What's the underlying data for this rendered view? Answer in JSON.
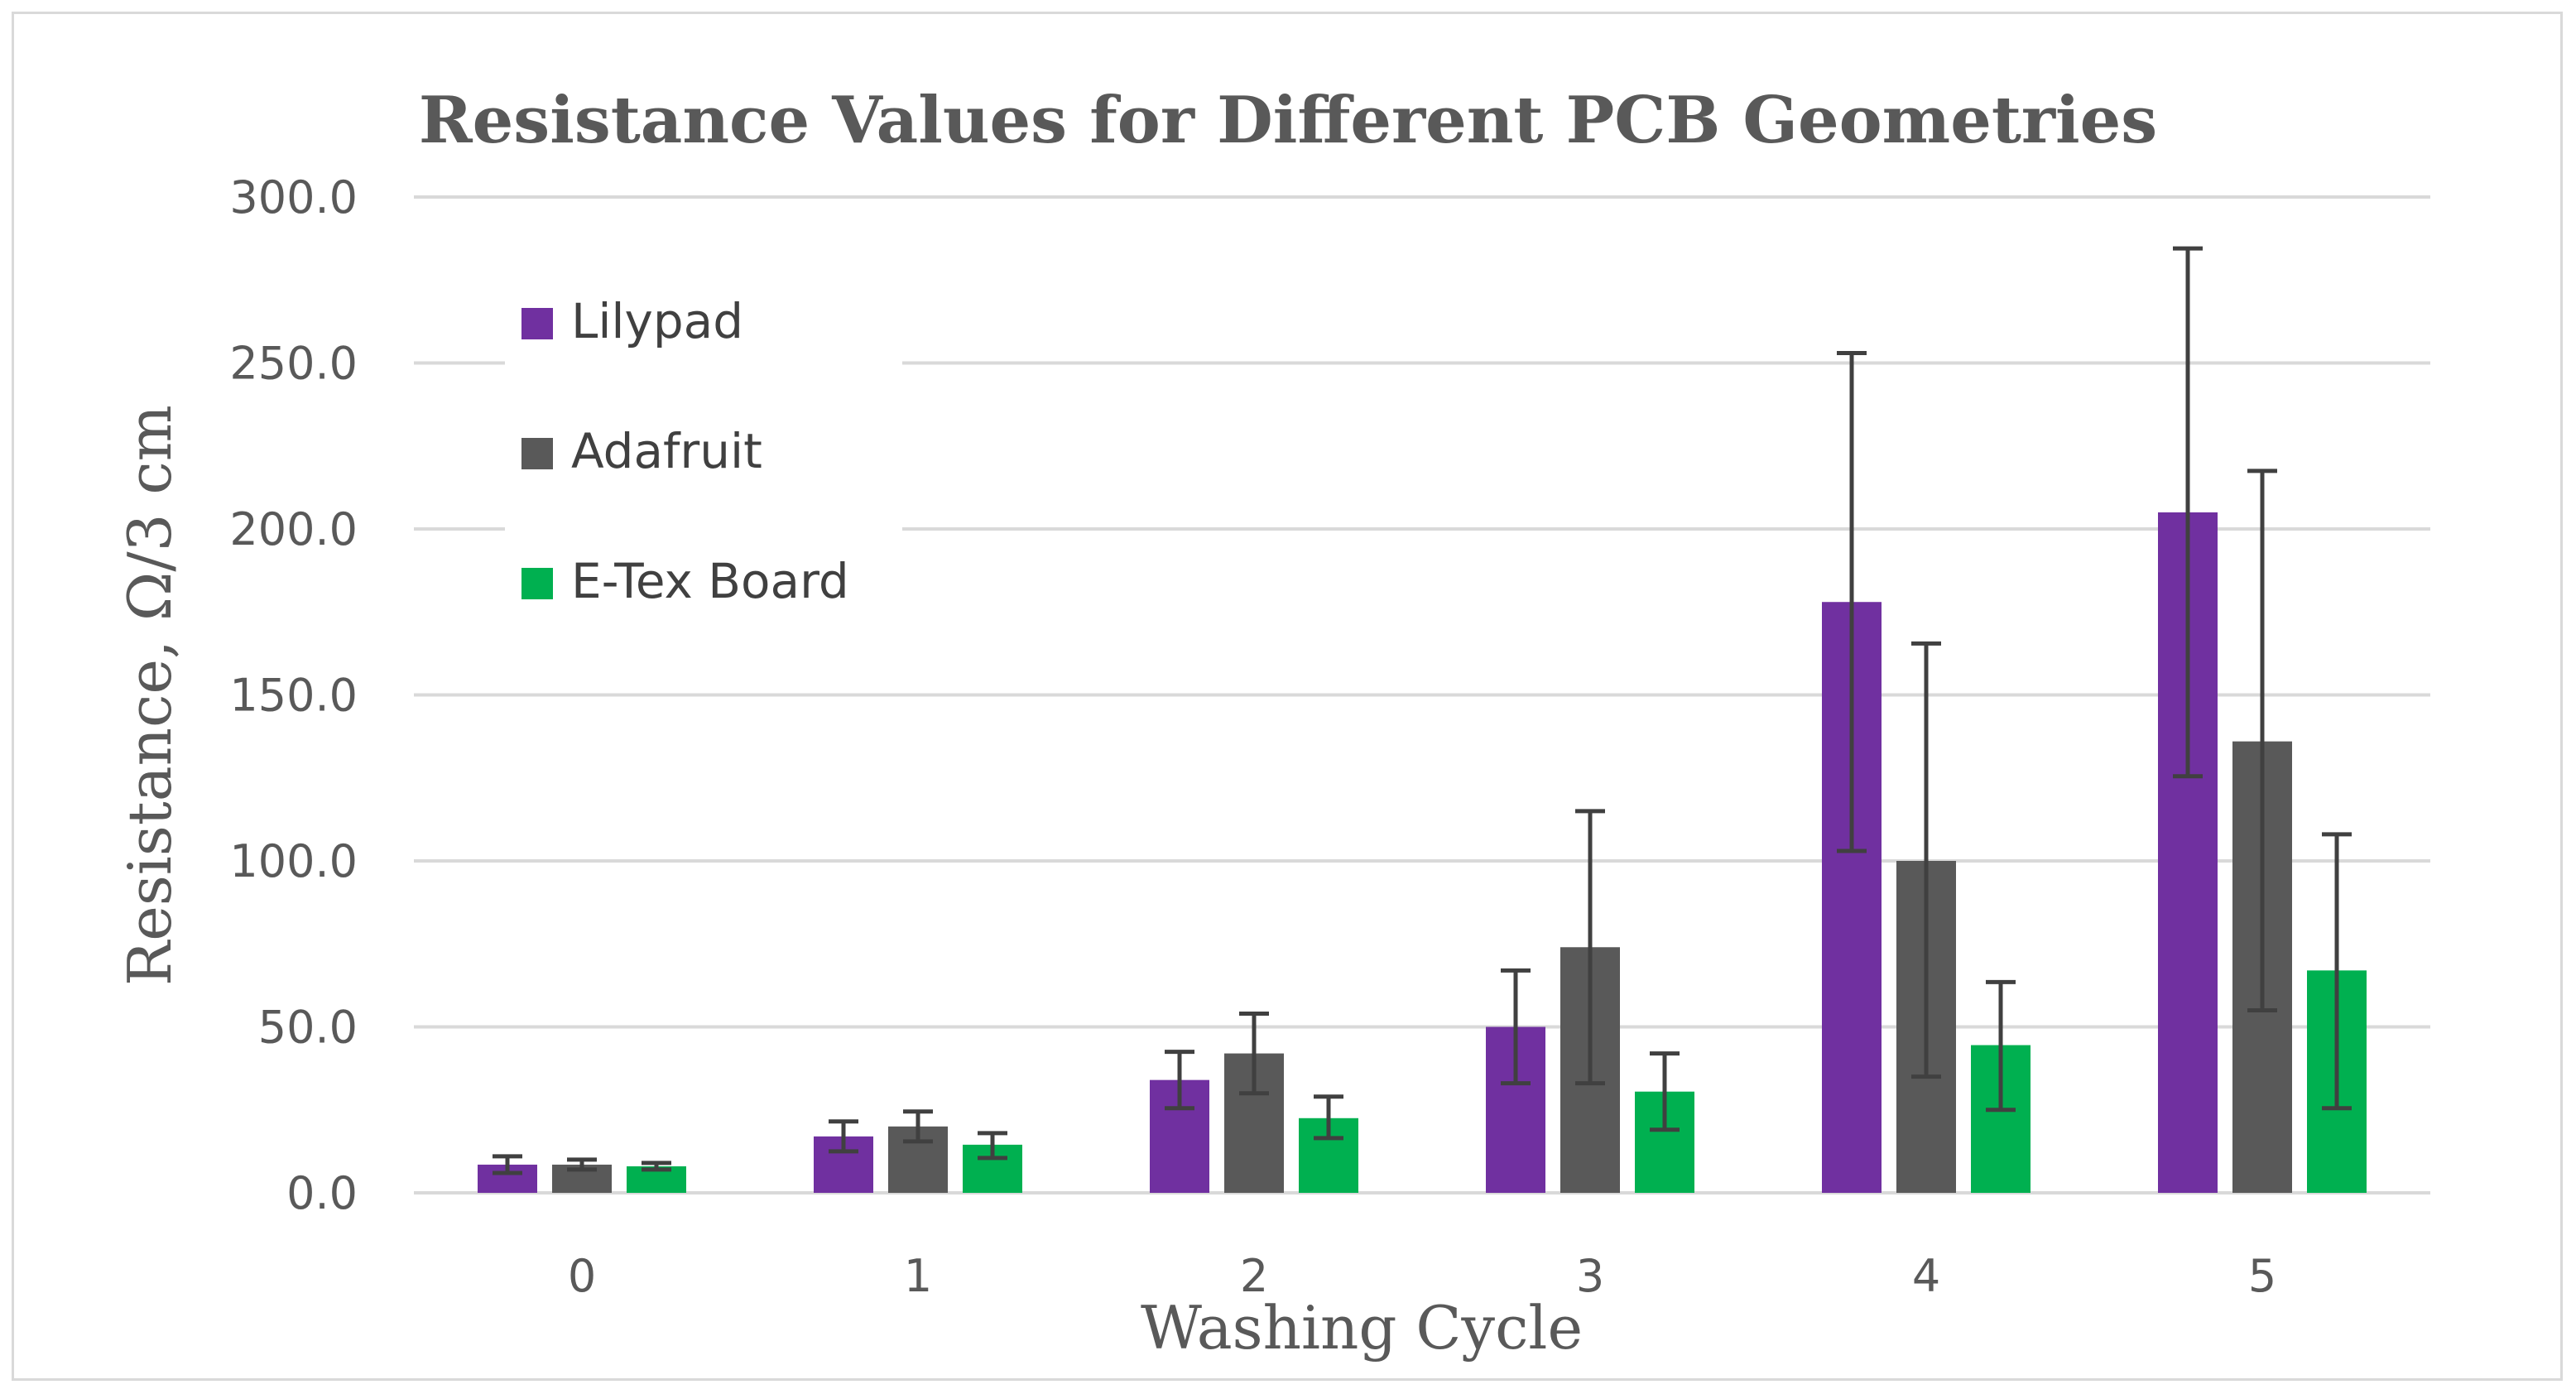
{
  "chart_data": {
    "type": "bar",
    "title": "Resistance Values for Different PCB Geometries",
    "xlabel": "Washing Cycle",
    "ylabel": "Resistance, Ω/3 cm",
    "categories": [
      "0",
      "1",
      "2",
      "3",
      "4",
      "5"
    ],
    "ylim": [
      0,
      300
    ],
    "yticks": [
      "0.0",
      "50.0",
      "100.0",
      "150.0",
      "200.0",
      "250.0",
      "300.0"
    ],
    "grid": true,
    "legend_position": "top-left",
    "series": [
      {
        "name": "Lilypad",
        "color": "#7030a0",
        "values": [
          8.5,
          17.0,
          34.0,
          50.0,
          178.0,
          205.0
        ],
        "error_low": [
          6.0,
          12.5,
          25.5,
          33.0,
          103.0,
          125.5
        ],
        "error_high": [
          11.0,
          21.5,
          42.5,
          67.0,
          253.0,
          284.5
        ]
      },
      {
        "name": "Adafruit",
        "color": "#595959",
        "values": [
          8.5,
          20.0,
          42.0,
          74.0,
          100.0,
          136.0
        ],
        "error_low": [
          7.0,
          15.5,
          30.0,
          33.0,
          35.0,
          55.0
        ],
        "error_high": [
          10.0,
          24.5,
          54.0,
          115.0,
          165.5,
          217.5
        ]
      },
      {
        "name": "E-Tex Board",
        "color": "#00b050",
        "values": [
          8.0,
          14.5,
          22.5,
          30.5,
          44.5,
          67.0
        ],
        "error_low": [
          7.0,
          10.5,
          16.5,
          19.0,
          25.0,
          25.5
        ],
        "error_high": [
          9.0,
          18.0,
          29.0,
          42.0,
          63.5,
          108.0
        ]
      }
    ]
  }
}
